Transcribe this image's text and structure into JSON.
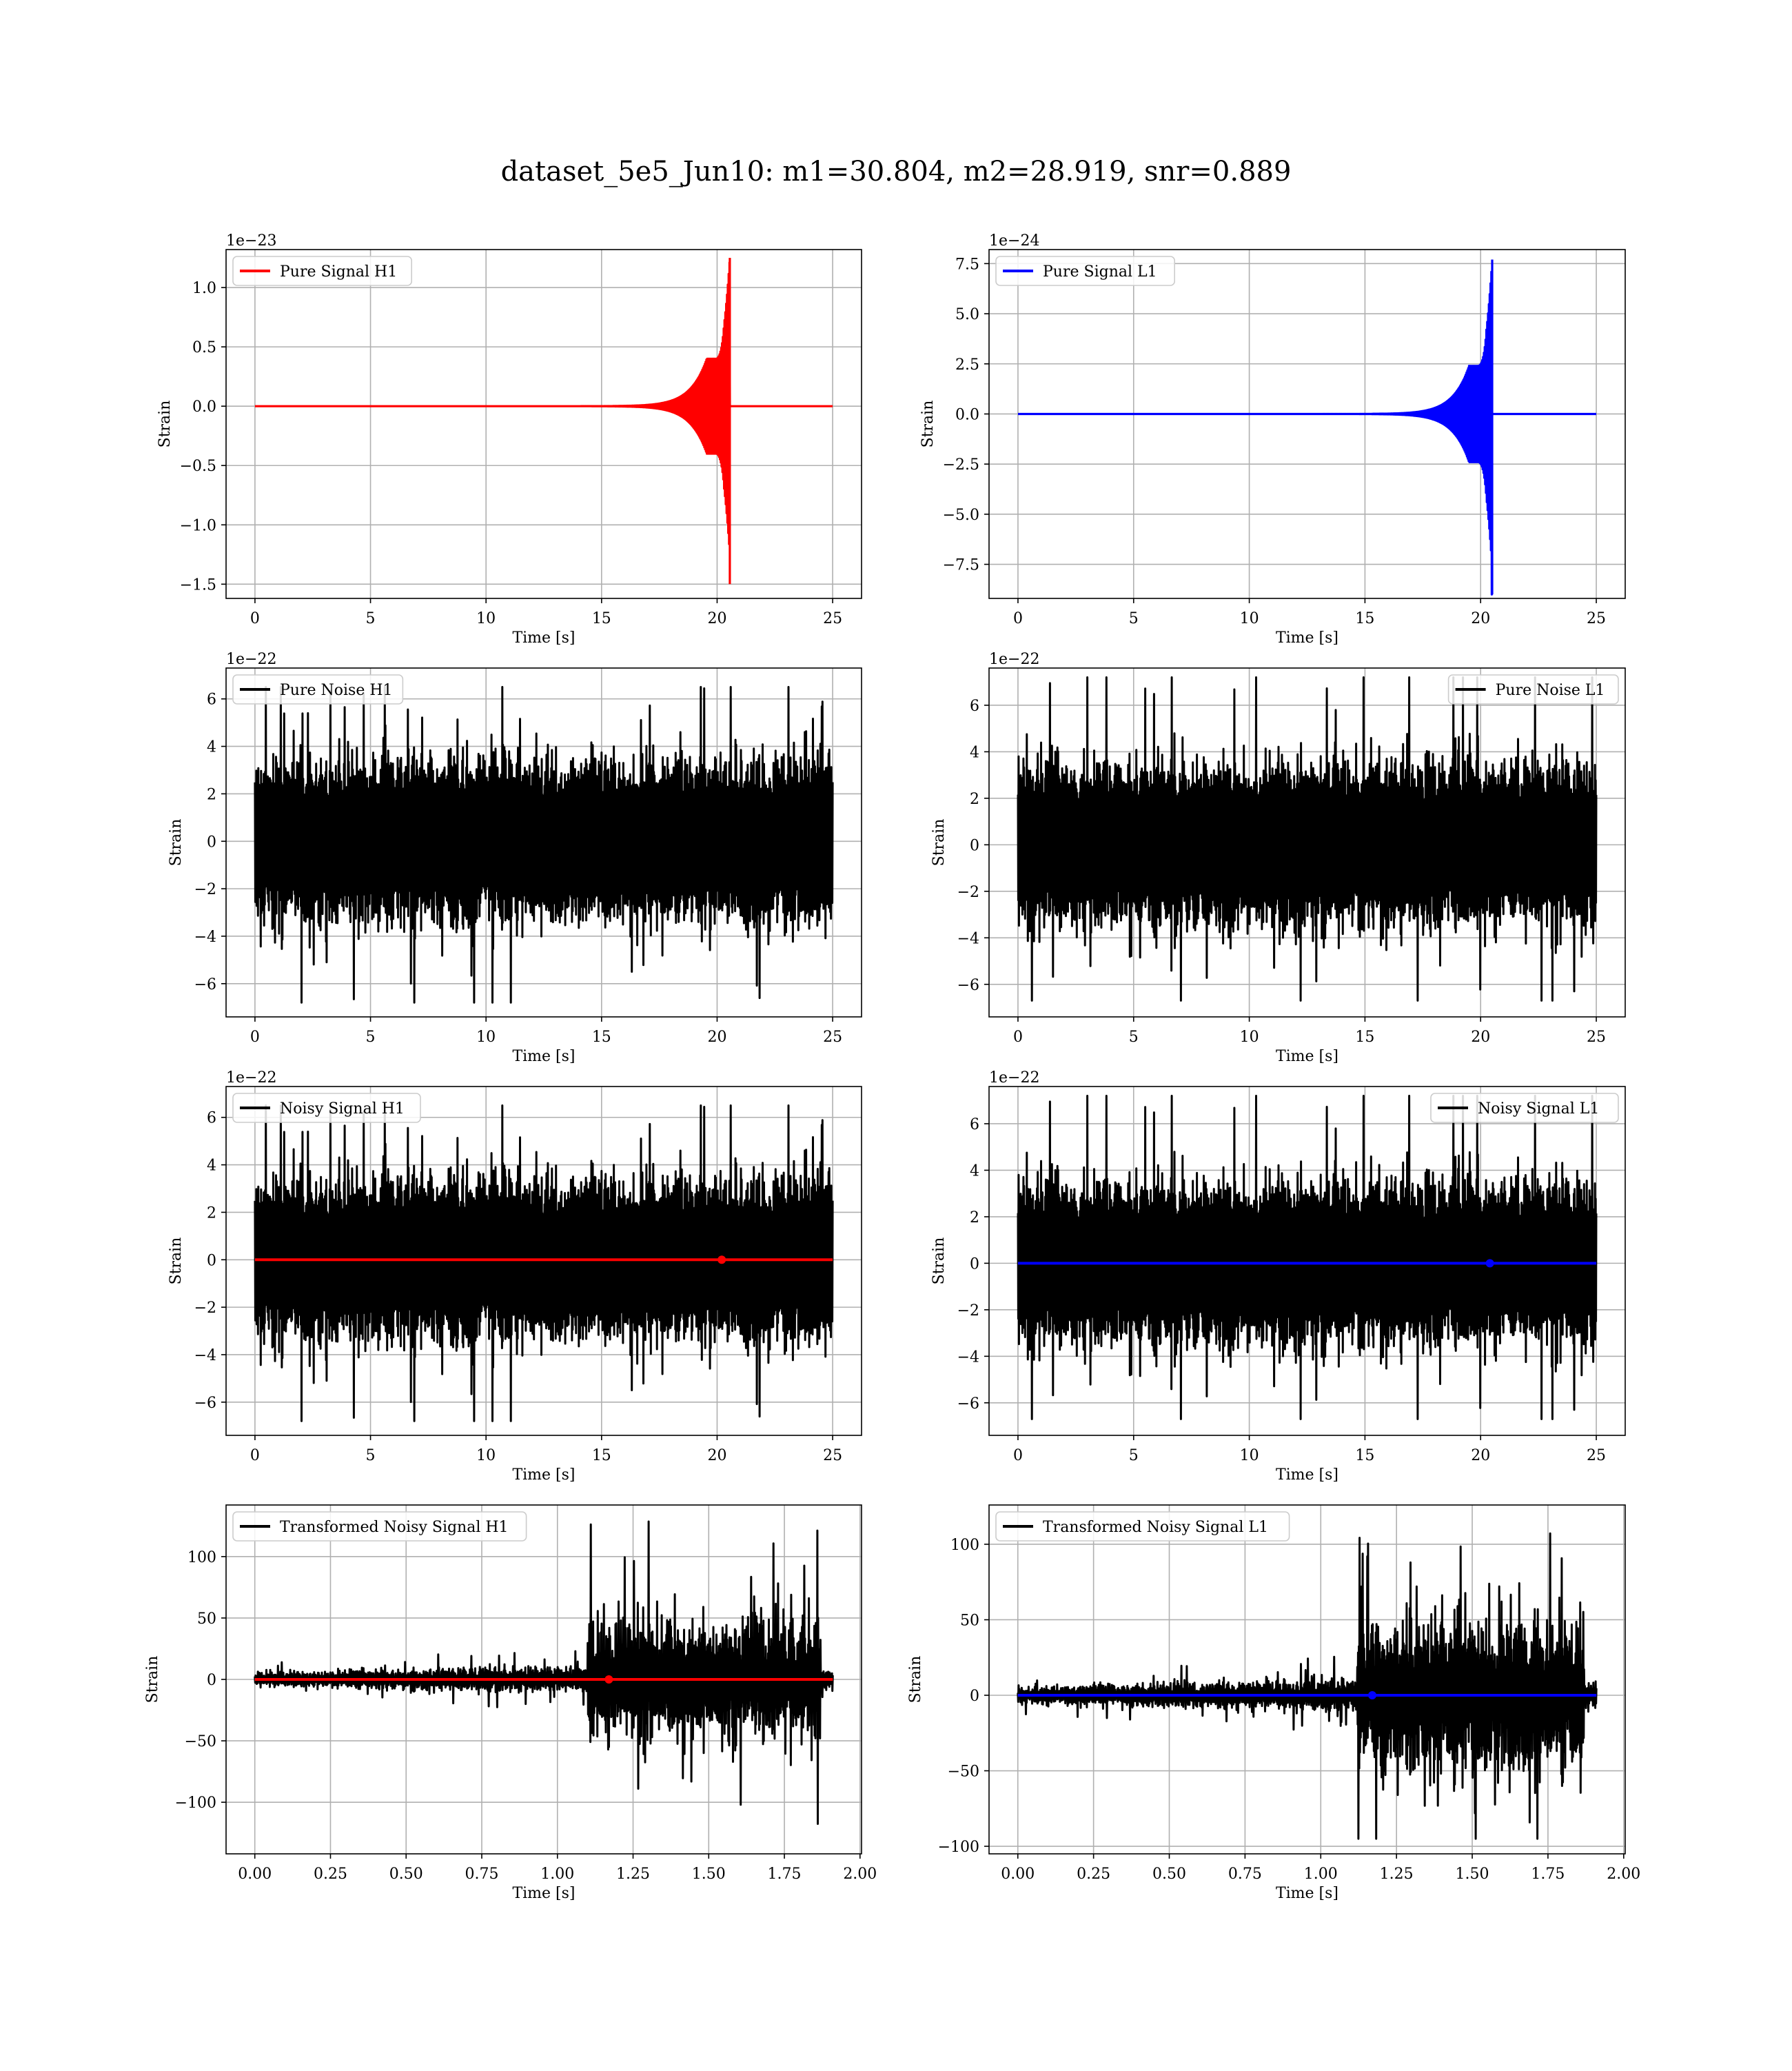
{
  "figure": {
    "title": "dataset_5e5_Jun10: m1=30.804, m2=28.919, snr=0.889"
  },
  "chart_data": [
    {
      "type": "line",
      "id": "pure_signal_h1",
      "xlabel": "Time [s]",
      "ylabel": "Strain",
      "offset_text": "1e−23",
      "xlim": [
        -1.25,
        26.25
      ],
      "ylim": [
        -1.62,
        1.32
      ],
      "xticks": [
        0,
        5,
        10,
        15,
        20,
        25
      ],
      "xtick_labels": [
        "0",
        "5",
        "10",
        "15",
        "20",
        "25"
      ],
      "yticks": [
        -1.5,
        -1.0,
        -0.5,
        0.0,
        0.5,
        1.0
      ],
      "ytick_labels": [
        "−1.5",
        "−1.0",
        "−0.5",
        "0.0",
        "0.5",
        "1.0"
      ],
      "legend": {
        "loc": "upper left"
      },
      "grid": true,
      "series": [
        {
          "name": "Pure Signal H1",
          "color": "#ff0000",
          "kind": "chirp",
          "t_start": 0,
          "t_end": 25,
          "t_merger": 20.55,
          "peak_plus": 1.25,
          "peak_minus": -1.5,
          "plateau": 0.4
        }
      ]
    },
    {
      "type": "line",
      "id": "pure_signal_l1",
      "xlabel": "Time [s]",
      "ylabel": "Strain",
      "offset_text": "1e−24",
      "xlim": [
        -1.25,
        26.25
      ],
      "ylim": [
        -9.2,
        8.2
      ],
      "xticks": [
        0,
        5,
        10,
        15,
        20,
        25
      ],
      "xtick_labels": [
        "0",
        "5",
        "10",
        "15",
        "20",
        "25"
      ],
      "yticks": [
        -7.5,
        -5.0,
        -2.5,
        0.0,
        2.5,
        5.0,
        7.5
      ],
      "ytick_labels": [
        "−7.5",
        "−5.0",
        "−2.5",
        "0.0",
        "2.5",
        "5.0",
        "7.5"
      ],
      "legend": {
        "loc": "upper left"
      },
      "grid": true,
      "series": [
        {
          "name": "Pure Signal L1",
          "color": "#0000ff",
          "kind": "chirp",
          "t_start": 0,
          "t_end": 25,
          "t_merger": 20.5,
          "peak_plus": 7.7,
          "peak_minus": -9.0,
          "plateau": 2.4
        }
      ]
    },
    {
      "type": "line",
      "id": "pure_noise_h1",
      "xlabel": "Time [s]",
      "ylabel": "Strain",
      "offset_text": "1e−22",
      "xlim": [
        -1.25,
        26.25
      ],
      "ylim": [
        -7.4,
        7.3
      ],
      "xticks": [
        0,
        5,
        10,
        15,
        20,
        25
      ],
      "xtick_labels": [
        "0",
        "5",
        "10",
        "15",
        "20",
        "25"
      ],
      "yticks": [
        -6,
        -4,
        -2,
        0,
        2,
        4,
        6
      ],
      "ytick_labels": [
        "−6",
        "−4",
        "−2",
        "0",
        "2",
        "4",
        "6"
      ],
      "legend": {
        "loc": "upper left"
      },
      "grid": true,
      "series": [
        {
          "name": "Pure Noise H1",
          "color": "#000000",
          "kind": "noise",
          "t_start": 0,
          "t_end": 25,
          "band": 3.2,
          "max": 6.5,
          "min": -6.8,
          "seed": 11
        }
      ]
    },
    {
      "type": "line",
      "id": "pure_noise_l1",
      "xlabel": "Time [s]",
      "ylabel": "Strain",
      "offset_text": "1e−22",
      "xlim": [
        -1.25,
        26.25
      ],
      "ylim": [
        -7.4,
        7.6
      ],
      "xticks": [
        0,
        5,
        10,
        15,
        20,
        25
      ],
      "xtick_labels": [
        "0",
        "5",
        "10",
        "15",
        "20",
        "25"
      ],
      "yticks": [
        -6,
        -4,
        -2,
        0,
        2,
        4,
        6
      ],
      "ytick_labels": [
        "−6",
        "−4",
        "−2",
        "0",
        "2",
        "4",
        "6"
      ],
      "legend": {
        "loc": "upper right"
      },
      "grid": true,
      "series": [
        {
          "name": "Pure Noise L1",
          "color": "#000000",
          "kind": "noise",
          "t_start": 0,
          "t_end": 25,
          "band": 3.3,
          "max": 7.2,
          "min": -6.7,
          "seed": 23
        }
      ]
    },
    {
      "type": "line",
      "id": "noisy_signal_h1",
      "xlabel": "Time [s]",
      "ylabel": "Strain",
      "offset_text": "1e−22",
      "xlim": [
        -1.25,
        26.25
      ],
      "ylim": [
        -7.4,
        7.3
      ],
      "xticks": [
        0,
        5,
        10,
        15,
        20,
        25
      ],
      "xtick_labels": [
        "0",
        "5",
        "10",
        "15",
        "20",
        "25"
      ],
      "yticks": [
        -6,
        -4,
        -2,
        0,
        2,
        4,
        6
      ],
      "ytick_labels": [
        "−6",
        "−4",
        "−2",
        "0",
        "2",
        "4",
        "6"
      ],
      "legend": {
        "loc": "upper left"
      },
      "grid": true,
      "series": [
        {
          "name": "Noisy Signal H1",
          "color": "#000000",
          "kind": "noise",
          "t_start": 0,
          "t_end": 25,
          "band": 3.2,
          "max": 6.5,
          "min": -6.8,
          "seed": 11
        },
        {
          "color": "#ff0000",
          "kind": "overlay",
          "t_start": 0,
          "t_end": 25,
          "value": 0,
          "marker_t": 20.2
        }
      ]
    },
    {
      "type": "line",
      "id": "noisy_signal_l1",
      "xlabel": "Time [s]",
      "ylabel": "Strain",
      "offset_text": "1e−22",
      "xlim": [
        -1.25,
        26.25
      ],
      "ylim": [
        -7.4,
        7.6
      ],
      "xticks": [
        0,
        5,
        10,
        15,
        20,
        25
      ],
      "xtick_labels": [
        "0",
        "5",
        "10",
        "15",
        "20",
        "25"
      ],
      "yticks": [
        -6,
        -4,
        -2,
        0,
        2,
        4,
        6
      ],
      "ytick_labels": [
        "−6",
        "−4",
        "−2",
        "0",
        "2",
        "4",
        "6"
      ],
      "legend": {
        "loc": "upper right"
      },
      "grid": true,
      "series": [
        {
          "name": "Noisy Signal L1",
          "color": "#000000",
          "kind": "noise",
          "t_start": 0,
          "t_end": 25,
          "band": 3.3,
          "max": 7.2,
          "min": -6.7,
          "seed": 23
        },
        {
          "color": "#0000ff",
          "kind": "overlay",
          "t_start": 0,
          "t_end": 25,
          "value": 0,
          "marker_t": 20.4
        }
      ]
    },
    {
      "type": "line",
      "id": "transformed_h1",
      "xlabel": "Time [s]",
      "ylabel": "Strain",
      "offset_text": "",
      "xlim": [
        -0.095,
        2.005
      ],
      "ylim": [
        -142,
        142
      ],
      "xticks": [
        0,
        0.25,
        0.5,
        0.75,
        1.0,
        1.25,
        1.5,
        1.75,
        2.0
      ],
      "xtick_labels": [
        "0.00",
        "0.25",
        "0.50",
        "0.75",
        "1.00",
        "1.25",
        "1.50",
        "1.75",
        "2.00"
      ],
      "yticks": [
        -100,
        -50,
        0,
        50,
        100
      ],
      "ytick_labels": [
        "−100",
        "−50",
        "0",
        "50",
        "100"
      ],
      "legend": {
        "loc": "upper left"
      },
      "grid": true,
      "series": [
        {
          "name": "Transformed Noisy Signal H1",
          "color": "#000000",
          "kind": "burst",
          "t_start": 0,
          "t_end": 1.91,
          "t_burst": 1.1,
          "pre_band": 10,
          "post_band": 55,
          "max": 130,
          "min": -125,
          "seed": 41
        },
        {
          "color": "#ff0000",
          "kind": "overlay",
          "t_start": 0,
          "t_end": 1.91,
          "value": 0,
          "marker_t": 1.17
        }
      ]
    },
    {
      "type": "line",
      "id": "transformed_l1",
      "xlabel": "Time [s]",
      "ylabel": "Strain",
      "offset_text": "",
      "xlim": [
        -0.095,
        2.005
      ],
      "ylim": [
        -105,
        126
      ],
      "xticks": [
        0,
        0.25,
        0.5,
        0.75,
        1.0,
        1.25,
        1.5,
        1.75,
        2.0
      ],
      "xtick_labels": [
        "0.00",
        "0.25",
        "0.50",
        "0.75",
        "1.00",
        "1.25",
        "1.50",
        "1.75",
        "2.00"
      ],
      "yticks": [
        -100,
        -50,
        0,
        50,
        100
      ],
      "ytick_labels": [
        "−100",
        "−50",
        "0",
        "50",
        "100"
      ],
      "legend": {
        "loc": "upper left"
      },
      "grid": true,
      "series": [
        {
          "name": "Transformed Noisy Signal L1",
          "color": "#000000",
          "kind": "burst",
          "t_start": 0,
          "t_end": 1.91,
          "t_burst": 1.12,
          "pre_band": 10,
          "post_band": 60,
          "max": 120,
          "min": -95,
          "seed": 57
        },
        {
          "color": "#0000ff",
          "kind": "overlay",
          "t_start": 0,
          "t_end": 1.91,
          "value": 0,
          "marker_t": 1.17
        }
      ]
    }
  ]
}
